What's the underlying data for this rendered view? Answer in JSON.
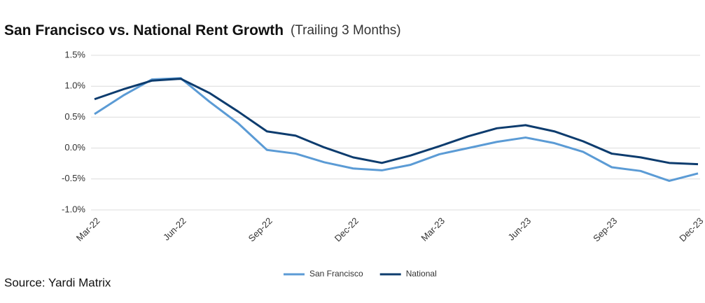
{
  "chart_data": {
    "type": "line",
    "title": "San Francisco vs. National Rent Growth",
    "subtitle": "(Trailing 3 Months)",
    "source": "Source: Yardi Matrix",
    "categories": [
      "Mar-22",
      null,
      null,
      "Jun-22",
      null,
      null,
      "Sep-22",
      null,
      null,
      "Dec-22",
      null,
      null,
      "Mar-23",
      null,
      null,
      "Jun-23",
      null,
      null,
      "Sep-23",
      null,
      null,
      "Dec-23"
    ],
    "series": [
      {
        "name": "San Francisco",
        "color": "#5b9bd5",
        "values": [
          0.55,
          0.85,
          1.11,
          1.13,
          0.75,
          0.4,
          -0.03,
          -0.09,
          -0.23,
          -0.33,
          -0.36,
          -0.27,
          -0.1,
          0.0,
          0.1,
          0.17,
          0.08,
          -0.06,
          -0.31,
          -0.37,
          -0.53,
          -0.41
        ]
      },
      {
        "name": "National",
        "color": "#0d3c6e",
        "values": [
          0.79,
          0.95,
          1.09,
          1.12,
          0.89,
          0.59,
          0.27,
          0.2,
          0.01,
          -0.15,
          -0.24,
          -0.12,
          0.03,
          0.19,
          0.32,
          0.37,
          0.27,
          0.11,
          -0.09,
          -0.15,
          -0.24,
          -0.26
        ]
      }
    ],
    "ylim": [
      -1.0,
      1.5
    ],
    "yticks": [
      {
        "value": -1.0,
        "label": "-1.0%"
      },
      {
        "value": -0.5,
        "label": "-0.5%"
      },
      {
        "value": 0.0,
        "label": "0.0%"
      },
      {
        "value": 0.5,
        "label": "0.5%"
      },
      {
        "value": 1.0,
        "label": "1.0%"
      },
      {
        "value": 1.5,
        "label": "1.5%"
      }
    ],
    "grid": true,
    "legend": "bottom"
  }
}
